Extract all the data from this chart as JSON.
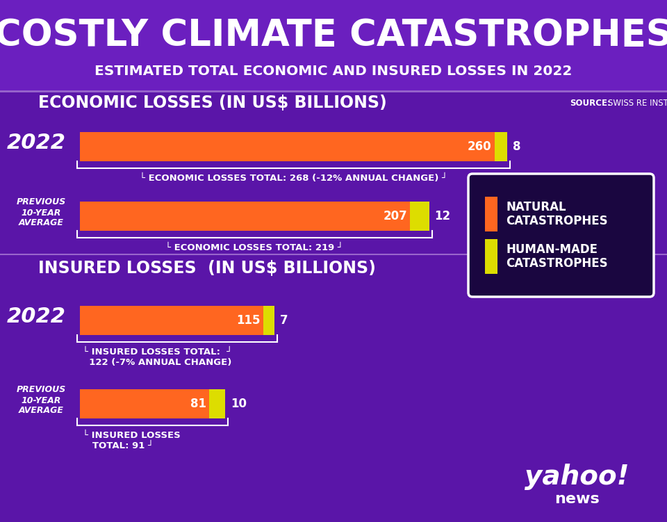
{
  "title": "COSTLY CLIMATE CATASTROPHES",
  "subtitle": "ESTIMATED TOTAL ECONOMIC AND INSURED LOSSES IN 2022",
  "bg_color_top": "#6B1FBF",
  "bg_color_main": "#5A15A8",
  "source_text_bold": "SOURCE:",
  "source_text_normal": " SWISS RE INSTITUTE",
  "economic_section_title": "ECONOMIC LOSSES (IN US$ BILLIONS)",
  "insured_section_title": "INSURED LOSSES  (IN US$ BILLIONS)",
  "bars": {
    "econ_2022_natural": 260,
    "econ_2022_human": 8,
    "econ_2022_total": 268,
    "econ_2022_change": "-12% ANNUAL CHANGE",
    "econ_prev_natural": 207,
    "econ_prev_human": 12,
    "econ_prev_total": 219,
    "ins_2022_natural": 115,
    "ins_2022_human": 7,
    "ins_2022_total": 122,
    "ins_2022_change": "-7% ANNUAL CHANGE",
    "ins_prev_natural": 81,
    "ins_prev_human": 10,
    "ins_prev_total": 91
  },
  "color_natural": "#FF6620",
  "color_human": "#DDDD00",
  "color_white": "#FFFFFF",
  "legend_natural": "NATURAL\nCATASTROPHES",
  "legend_human": "HUMAN-MADE\nCATASTROPHES"
}
